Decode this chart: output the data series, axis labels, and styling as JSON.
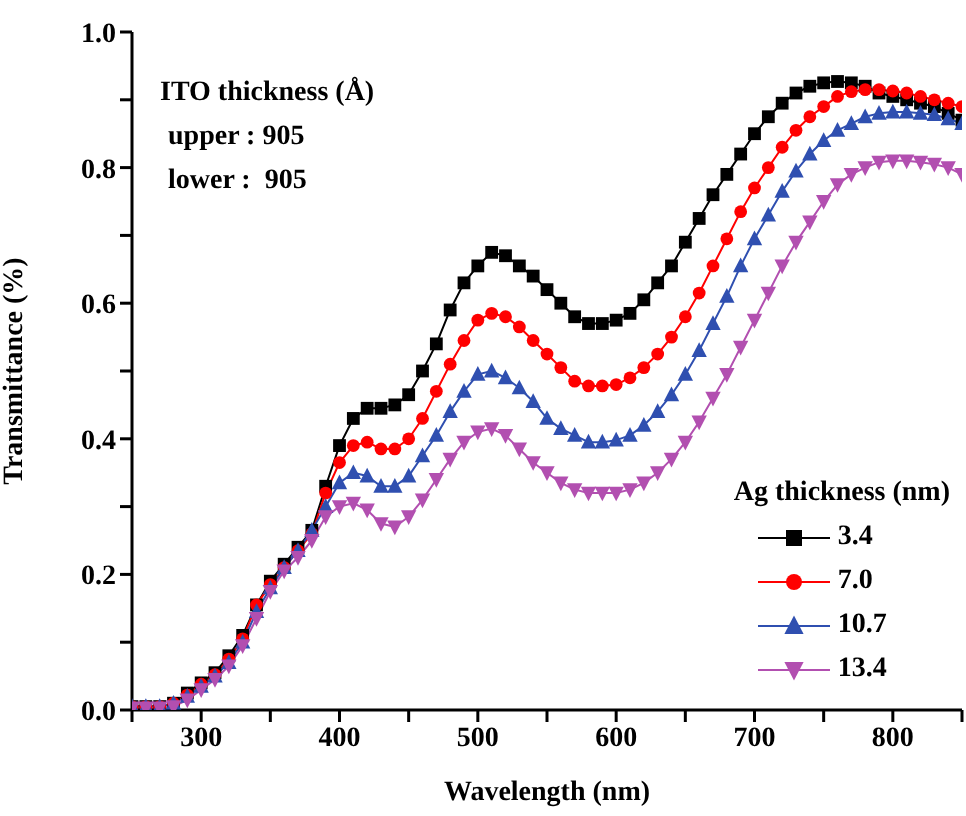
{
  "chart_data": {
    "type": "line",
    "xlabel": "Wavelength (nm)",
    "ylabel": "Transmittance (%)",
    "legend_title": "Ag thickness (nm)",
    "legend": "bottom right",
    "annotations": [
      "ITO thickness (Å)",
      "upper : 905",
      "lower :  905"
    ],
    "x": [
      250,
      260,
      270,
      280,
      290,
      300,
      310,
      320,
      330,
      340,
      350,
      360,
      370,
      380,
      390,
      400,
      410,
      420,
      430,
      440,
      450,
      460,
      470,
      480,
      490,
      500,
      510,
      520,
      530,
      540,
      550,
      560,
      570,
      580,
      590,
      600,
      610,
      620,
      630,
      640,
      650,
      660,
      670,
      680,
      690,
      700,
      710,
      720,
      730,
      740,
      750,
      760,
      770,
      780,
      790,
      800,
      810,
      820,
      830,
      840,
      850
    ],
    "xlim": [
      250,
      850
    ],
    "xticks": [
      {
        "value": 250,
        "label": null
      },
      300,
      {
        "value": 350,
        "label": null
      },
      400,
      {
        "value": 450,
        "label": null
      },
      500,
      {
        "value": 550,
        "label": null
      },
      600,
      {
        "value": 650,
        "label": null
      },
      700,
      {
        "value": 750,
        "label": null
      },
      800,
      {
        "value": 850,
        "label": null
      }
    ],
    "ylim": [
      0,
      1
    ],
    "yticks": [
      {
        "value": 0,
        "label": "0.0"
      },
      {
        "value": 0.1,
        "label": null
      },
      {
        "value": 0.2,
        "label": "0.2"
      },
      {
        "value": 0.3,
        "label": null
      },
      {
        "value": 0.4,
        "label": "0.4"
      },
      {
        "value": 0.5,
        "label": null
      },
      {
        "value": 0.6,
        "label": "0.6"
      },
      {
        "value": 0.7,
        "label": null
      },
      {
        "value": 0.8,
        "label": "0.8"
      },
      {
        "value": 0.9,
        "label": null
      },
      {
        "value": 1,
        "label": "1.0"
      }
    ],
    "series": [
      {
        "name": "3.4",
        "color": "#000000",
        "marker": "square",
        "values": [
          0.005,
          0.005,
          0.005,
          0.01,
          0.025,
          0.04,
          0.055,
          0.08,
          0.11,
          0.155,
          0.19,
          0.215,
          0.24,
          0.265,
          0.33,
          0.39,
          0.43,
          0.445,
          0.445,
          0.45,
          0.465,
          0.5,
          0.54,
          0.59,
          0.63,
          0.655,
          0.675,
          0.67,
          0.655,
          0.64,
          0.62,
          0.6,
          0.58,
          0.57,
          0.57,
          0.575,
          0.585,
          0.605,
          0.63,
          0.655,
          0.69,
          0.725,
          0.76,
          0.79,
          0.82,
          0.85,
          0.875,
          0.895,
          0.91,
          0.92,
          0.925,
          0.927,
          0.925,
          0.92,
          0.91,
          0.905,
          0.9,
          0.895,
          0.89,
          0.88,
          0.87
        ]
      },
      {
        "name": "7.0",
        "color": "#ff0000",
        "marker": "circle",
        "values": [
          0.005,
          0.005,
          0.005,
          0.01,
          0.022,
          0.038,
          0.052,
          0.075,
          0.105,
          0.155,
          0.185,
          0.21,
          0.235,
          0.26,
          0.32,
          0.365,
          0.39,
          0.395,
          0.385,
          0.385,
          0.4,
          0.43,
          0.47,
          0.51,
          0.545,
          0.575,
          0.585,
          0.58,
          0.565,
          0.545,
          0.525,
          0.505,
          0.485,
          0.478,
          0.478,
          0.48,
          0.49,
          0.505,
          0.525,
          0.55,
          0.58,
          0.615,
          0.655,
          0.695,
          0.735,
          0.77,
          0.8,
          0.83,
          0.855,
          0.875,
          0.89,
          0.905,
          0.912,
          0.915,
          0.915,
          0.913,
          0.91,
          0.905,
          0.9,
          0.895,
          0.89
        ]
      },
      {
        "name": "10.7",
        "color": "#2f4fb0",
        "marker": "triangle",
        "values": [
          0.005,
          0.005,
          0.005,
          0.01,
          0.02,
          0.035,
          0.05,
          0.07,
          0.1,
          0.145,
          0.18,
          0.21,
          0.235,
          0.265,
          0.3,
          0.335,
          0.35,
          0.345,
          0.33,
          0.33,
          0.345,
          0.375,
          0.405,
          0.44,
          0.47,
          0.495,
          0.5,
          0.49,
          0.475,
          0.455,
          0.43,
          0.415,
          0.405,
          0.395,
          0.395,
          0.398,
          0.405,
          0.42,
          0.44,
          0.465,
          0.495,
          0.53,
          0.57,
          0.61,
          0.655,
          0.695,
          0.73,
          0.765,
          0.795,
          0.82,
          0.84,
          0.855,
          0.865,
          0.875,
          0.88,
          0.882,
          0.882,
          0.88,
          0.878,
          0.872,
          0.865
        ]
      },
      {
        "name": "13.4",
        "color": "#b24fb0",
        "marker": "triangle-down",
        "values": [
          0.003,
          0.003,
          0.003,
          0.005,
          0.015,
          0.03,
          0.045,
          0.065,
          0.095,
          0.135,
          0.175,
          0.205,
          0.225,
          0.25,
          0.285,
          0.3,
          0.305,
          0.295,
          0.275,
          0.27,
          0.285,
          0.31,
          0.34,
          0.37,
          0.395,
          0.41,
          0.415,
          0.405,
          0.385,
          0.365,
          0.35,
          0.335,
          0.325,
          0.32,
          0.32,
          0.32,
          0.325,
          0.335,
          0.35,
          0.37,
          0.395,
          0.425,
          0.46,
          0.495,
          0.535,
          0.575,
          0.615,
          0.655,
          0.69,
          0.72,
          0.75,
          0.775,
          0.79,
          0.8,
          0.808,
          0.81,
          0.81,
          0.808,
          0.805,
          0.8,
          0.79
        ]
      }
    ]
  }
}
